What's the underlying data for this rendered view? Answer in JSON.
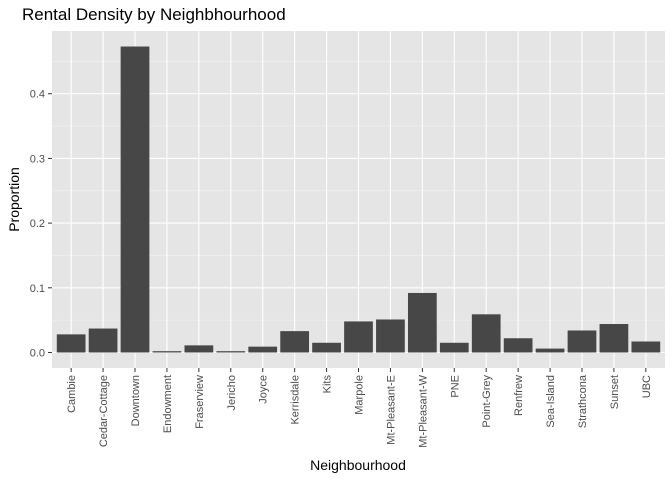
{
  "chart_data": {
    "type": "bar",
    "title": "Rental Density by Neighbhourhood",
    "xlabel": "Neighbourhood",
    "ylabel": "Proportion",
    "categories": [
      "Cambie",
      "Cedar-Cottage",
      "Downtown",
      "Endowment",
      "Fraserview",
      "Jericho",
      "Joyce",
      "Kerrisdale",
      "Kits",
      "Marpole",
      "Mt-Pleasant-E",
      "Mt-Pleasant-W",
      "PNE",
      "Point-Grey",
      "Renfrew",
      "Sea-Island",
      "Strathcona",
      "Sunset",
      "UBC"
    ],
    "values": [
      0.028,
      0.037,
      0.473,
      0.002,
      0.011,
      0.002,
      0.009,
      0.033,
      0.015,
      0.048,
      0.051,
      0.092,
      0.015,
      0.059,
      0.022,
      0.006,
      0.034,
      0.044,
      0.017
    ],
    "yticks": [
      0.0,
      0.1,
      0.2,
      0.3,
      0.4
    ],
    "ytick_labels": [
      "0.0",
      "0.1",
      "0.2",
      "0.3",
      "0.4"
    ],
    "ylim": [
      -0.024,
      0.497
    ],
    "grid": true,
    "colors": {
      "bar": "#474747",
      "panel": "#e5e5e5",
      "grid_major": "#ffffff",
      "grid_minor": "#f2f2f2"
    }
  }
}
